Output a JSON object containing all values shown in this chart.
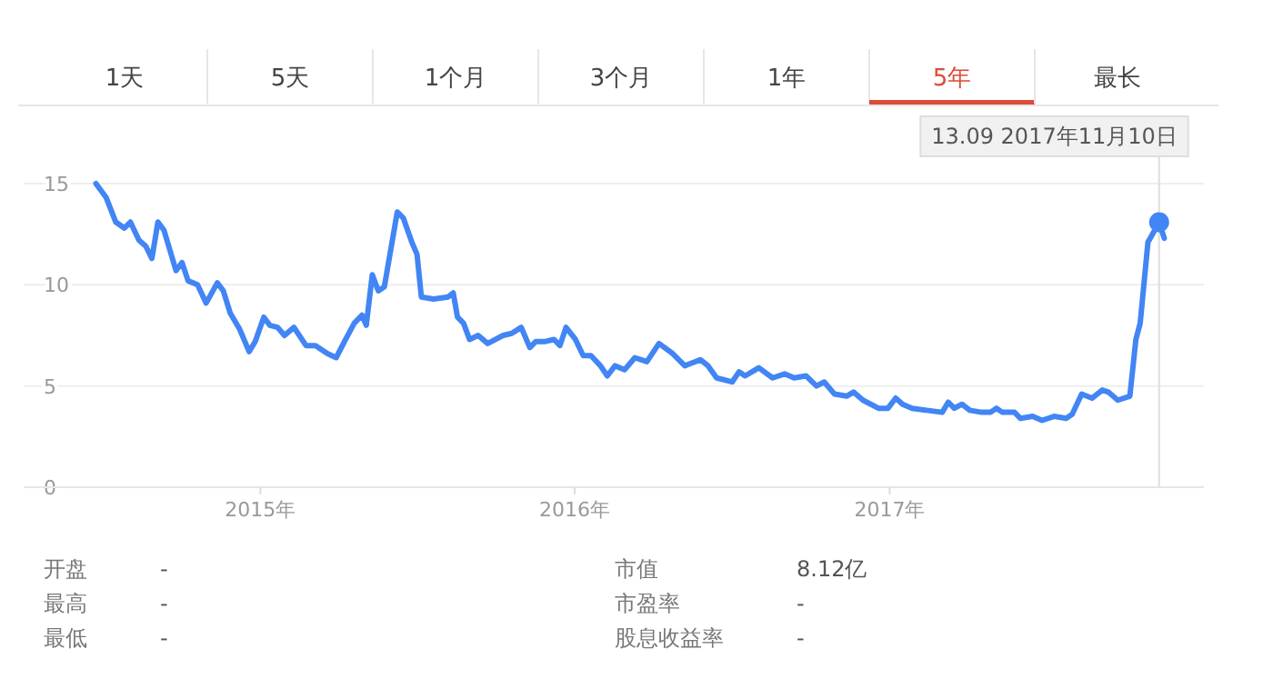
{
  "chart_data": {
    "type": "line",
    "x": [
      "2014-06-24",
      "2014-07-06",
      "2014-07-17",
      "2014-07-27",
      "2014-08-03",
      "2014-08-13",
      "2014-08-21",
      "2014-08-28",
      "2014-09-04",
      "2014-09-11",
      "2014-09-25",
      "2014-10-02",
      "2014-10-09",
      "2014-10-20",
      "2014-10-30",
      "2014-11-12",
      "2014-11-19",
      "2014-11-27",
      "2014-12-08",
      "2014-12-19",
      "2014-12-26",
      "2015-01-05",
      "2015-01-12",
      "2015-01-21",
      "2015-01-29",
      "2015-02-09",
      "2015-02-23",
      "2015-03-06",
      "2015-03-20",
      "2015-03-30",
      "2015-04-10",
      "2015-04-20",
      "2015-04-29",
      "2015-05-04",
      "2015-05-11",
      "2015-05-18",
      "2015-05-25",
      "2015-06-09",
      "2015-06-16",
      "2015-06-26",
      "2015-07-02",
      "2015-07-07",
      "2015-07-21",
      "2015-08-07",
      "2015-08-13",
      "2015-08-18",
      "2015-08-25",
      "2015-09-01",
      "2015-09-11",
      "2015-09-22",
      "2015-10-10",
      "2015-10-20",
      "2015-10-31",
      "2015-11-10",
      "2015-11-17",
      "2015-11-28",
      "2015-12-08",
      "2015-12-15",
      "2015-12-22",
      "2016-01-02",
      "2016-01-11",
      "2016-01-20",
      "2016-01-31",
      "2016-02-08",
      "2016-02-17",
      "2016-02-28",
      "2016-03-11",
      "2016-03-25",
      "2016-04-08",
      "2016-04-24",
      "2016-05-08",
      "2016-05-26",
      "2016-06-04",
      "2016-06-14",
      "2016-07-02",
      "2016-07-10",
      "2016-07-17",
      "2016-08-02",
      "2016-08-18",
      "2016-09-01",
      "2016-09-12",
      "2016-09-26",
      "2016-10-08",
      "2016-10-17",
      "2016-10-29",
      "2016-11-12",
      "2016-11-20",
      "2016-12-01",
      "2016-12-19",
      "2016-12-30",
      "2017-01-08",
      "2017-01-16",
      "2017-01-27",
      "2017-02-13",
      "2017-03-03",
      "2017-03-10",
      "2017-03-17",
      "2017-03-26",
      "2017-04-04",
      "2017-04-18",
      "2017-04-28",
      "2017-05-05",
      "2017-05-12",
      "2017-05-26",
      "2017-06-02",
      "2017-06-16",
      "2017-06-27",
      "2017-07-11",
      "2017-07-25",
      "2017-08-01",
      "2017-08-12",
      "2017-08-24",
      "2017-09-05",
      "2017-09-12",
      "2017-09-23",
      "2017-10-07",
      "2017-10-14",
      "2017-10-19",
      "2017-10-28",
      "2017-11-10",
      "2017-11-16"
    ],
    "series": [
      {
        "color": "#4285f4",
        "values": [
          15.0,
          14.3,
          13.1,
          12.8,
          13.1,
          12.2,
          11.9,
          11.3,
          13.1,
          12.7,
          10.7,
          11.1,
          10.2,
          10.0,
          9.1,
          10.1,
          9.7,
          8.6,
          7.8,
          6.7,
          7.2,
          8.4,
          8.0,
          7.9,
          7.5,
          7.9,
          7.0,
          7.0,
          6.6,
          6.4,
          7.3,
          8.1,
          8.5,
          8.0,
          10.5,
          9.7,
          9.9,
          13.6,
          13.3,
          12.1,
          11.5,
          9.4,
          9.3,
          9.4,
          9.6,
          8.4,
          8.1,
          7.3,
          7.5,
          7.1,
          7.5,
          7.6,
          7.9,
          6.9,
          7.2,
          7.2,
          7.3,
          7.0,
          7.9,
          7.3,
          6.5,
          6.5,
          6.0,
          5.5,
          6.0,
          5.8,
          6.4,
          6.2,
          7.1,
          6.6,
          6.0,
          6.3,
          6.0,
          5.4,
          5.2,
          5.7,
          5.5,
          5.9,
          5.4,
          5.6,
          5.4,
          5.5,
          5.0,
          5.2,
          4.6,
          4.5,
          4.7,
          4.3,
          3.9,
          3.9,
          4.4,
          4.1,
          3.9,
          3.8,
          3.7,
          4.2,
          3.9,
          4.1,
          3.8,
          3.7,
          3.7,
          3.9,
          3.7,
          3.7,
          3.4,
          3.5,
          3.3,
          3.5,
          3.4,
          3.6,
          4.6,
          4.4,
          4.8,
          4.7,
          4.3,
          4.5,
          7.3,
          8.1,
          12.1,
          13.09,
          12.3
        ]
      },
      {
        "type": "scatter",
        "marker": "circle",
        "color": "#4285f4",
        "x": [
          "2017-11-10"
        ],
        "values": [
          13.09
        ]
      }
    ],
    "xlim": [
      "2014-04-01",
      "2018-01-01"
    ],
    "xticks": [
      {
        "value": "2015-01-01",
        "label": "2015年"
      },
      {
        "value": "2016-01-01",
        "label": "2016年"
      },
      {
        "value": "2017-01-01",
        "label": "2017年"
      }
    ],
    "ylim": [
      0,
      15
    ],
    "yticks": [
      0,
      5,
      10,
      15
    ],
    "grid": "y",
    "ref_lines": [
      {
        "axis": "x",
        "value": "2017-11-10",
        "color": "#dddddd"
      }
    ],
    "annotations": [
      "13.09 2017年11月10日",
      "1天",
      "5天",
      "1个月",
      "3个月",
      "1年",
      "5年",
      "最长",
      "开盘",
      "-",
      "最高",
      "-",
      "最低",
      "-",
      "市值",
      "8.12亿",
      "市盈率",
      "-",
      "股息收益率",
      "-"
    ]
  }
}
